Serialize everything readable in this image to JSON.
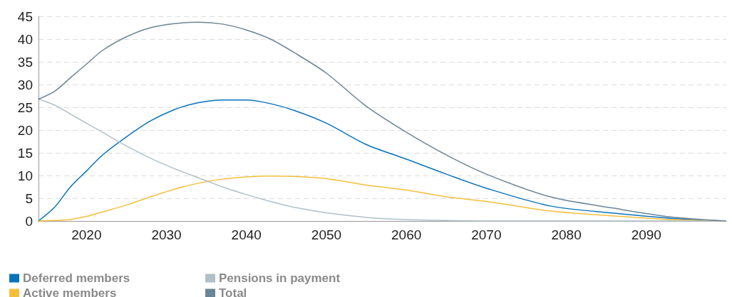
{
  "chart_data": {
    "type": "line",
    "x": [
      2014,
      2016,
      2018,
      2020,
      2022,
      2025,
      2028,
      2031,
      2034,
      2037,
      2040,
      2043,
      2046,
      2050,
      2055,
      2060,
      2065,
      2070,
      2078,
      2086,
      2093,
      2100
    ],
    "series": [
      {
        "name": "Deferred members",
        "color": "#0a72ba",
        "values": [
          0,
          3,
          7.5,
          11,
          14.5,
          18.5,
          22,
          24.5,
          26,
          26.6,
          26.6,
          25.8,
          24.3,
          21.5,
          16.8,
          13.6,
          10.3,
          7.2,
          3.3,
          1.7,
          0.6,
          0
        ]
      },
      {
        "name": "Active members",
        "color": "#f5bf3a",
        "values": [
          0,
          0.1,
          0.3,
          1,
          2,
          3.5,
          5.3,
          7,
          8.3,
          9.2,
          9.7,
          9.9,
          9.8,
          9.3,
          7.9,
          6.8,
          5.3,
          4.3,
          2.2,
          1.1,
          0.3,
          0
        ]
      },
      {
        "name": "Pensions in payment",
        "color": "#b0c0c8",
        "values": [
          26.8,
          25.5,
          23.5,
          21.5,
          19.5,
          16.5,
          13.8,
          11.5,
          9.5,
          7.5,
          5.8,
          4.3,
          3,
          1.8,
          0.8,
          0.3,
          0.1,
          0,
          0,
          0,
          0,
          0
        ]
      },
      {
        "name": "Total",
        "color": "#6a8595",
        "values": [
          26.8,
          28.5,
          31.5,
          34.5,
          37.5,
          40.5,
          42.5,
          43.4,
          43.7,
          43.3,
          42,
          40,
          37,
          32.5,
          25.2,
          19.5,
          14.5,
          10.3,
          5.3,
          2.8,
          0.9,
          0
        ]
      }
    ],
    "xlim": [
      2014,
      2100
    ],
    "xticks": [
      2020,
      2030,
      2040,
      2050,
      2060,
      2070,
      2080,
      2090
    ],
    "ylim": [
      0,
      45
    ],
    "yticks": [
      0,
      5,
      10,
      15,
      20,
      25,
      30,
      35,
      40,
      45
    ],
    "grid": "y",
    "legend": "bottom left",
    "marker": "none",
    "line_style": "solid"
  }
}
